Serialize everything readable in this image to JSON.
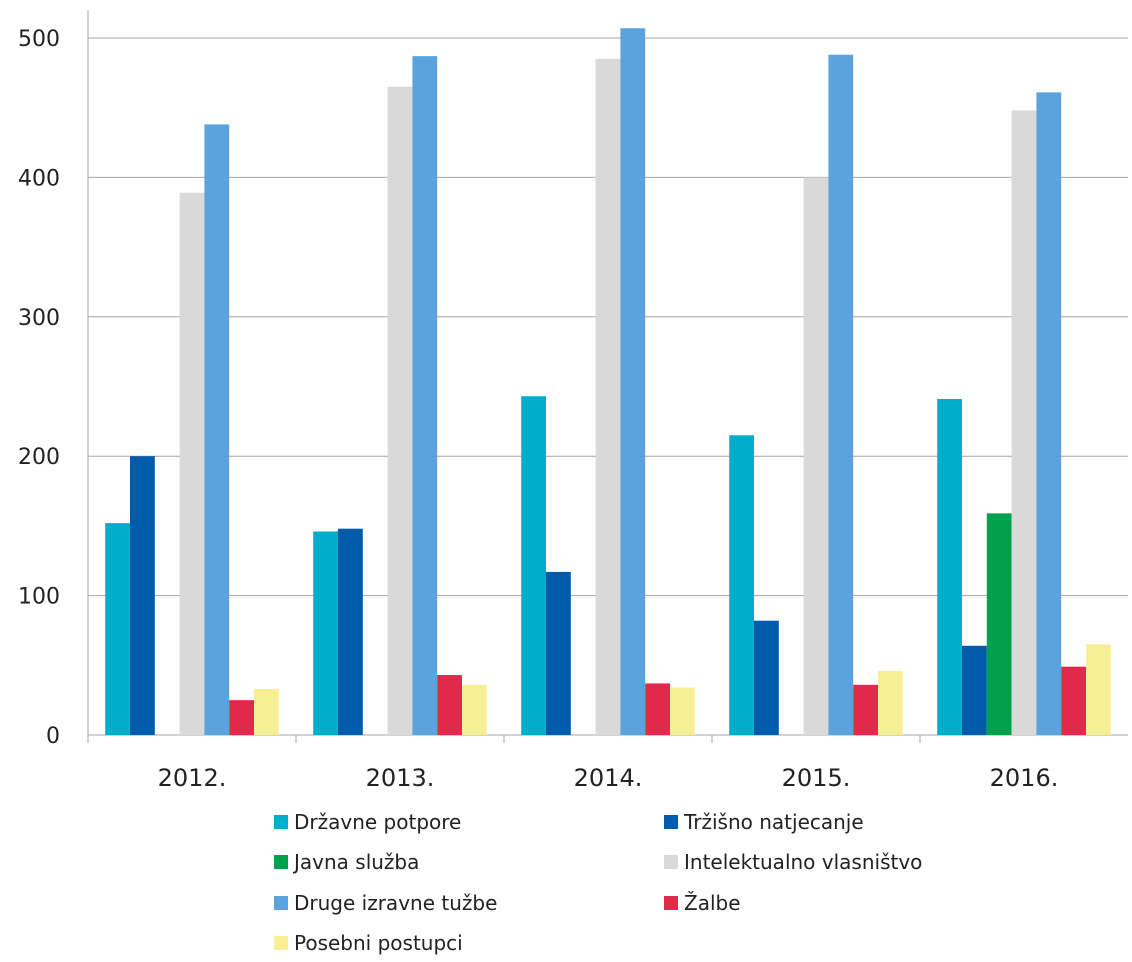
{
  "chart_data": {
    "type": "bar",
    "categories": [
      "2012.",
      "2013.",
      "2014.",
      "2015.",
      "2016."
    ],
    "ylim": [
      0,
      500
    ],
    "yticks": [
      0,
      100,
      200,
      300,
      400,
      500
    ],
    "grid": true,
    "legend_position": "bottom",
    "series": [
      {
        "name": "Državne potpore",
        "color": "#00AECB",
        "values": [
          152,
          146,
          243,
          215,
          241
        ]
      },
      {
        "name": "Tržišno natjecanje",
        "color": "#005BAA",
        "values": [
          200,
          148,
          117,
          82,
          64
        ]
      },
      {
        "name": "Javna služba",
        "color": "#00A04E",
        "values": [
          null,
          null,
          null,
          null,
          159
        ]
      },
      {
        "name": "Intelektualno vlasništvo",
        "color": "#D9D9D9",
        "values": [
          389,
          465,
          485,
          400,
          448
        ]
      },
      {
        "name": "Druge izravne tužbe",
        "color": "#5BA3DC",
        "values": [
          438,
          487,
          507,
          488,
          461
        ]
      },
      {
        "name": "Žalbe",
        "color": "#E0294B",
        "values": [
          25,
          43,
          37,
          36,
          49
        ]
      },
      {
        "name": "Posebni postupci",
        "color": "#F8EE94",
        "values": [
          33,
          36,
          34,
          46,
          65
        ]
      }
    ]
  }
}
